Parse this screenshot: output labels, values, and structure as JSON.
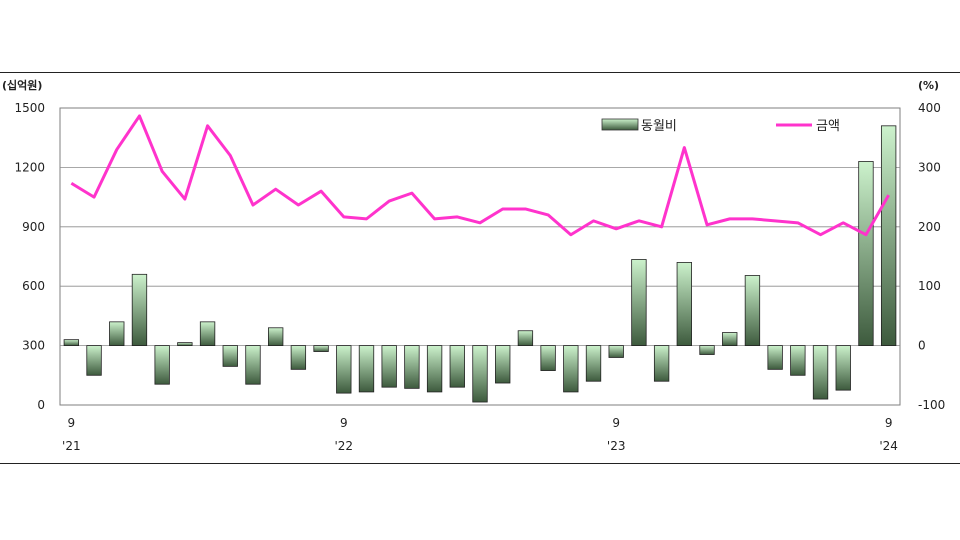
{
  "chart_data": {
    "type": "bar+line",
    "left_unit": "(십억원)",
    "right_unit": "(%)",
    "left_ylim": [
      0,
      1500
    ],
    "left_ticks": [
      "0",
      "300",
      "600",
      "900",
      "1200",
      "1500"
    ],
    "right_ylim": [
      -100,
      400
    ],
    "right_ticks": [
      "-100",
      "0",
      "100",
      "200",
      "300",
      "400"
    ],
    "grid": true,
    "legend_position": "top-right",
    "x_tick_labels": [
      {
        "month": "9",
        "year": "'21",
        "index": 0
      },
      {
        "month": "9",
        "year": "'22",
        "index": 12
      },
      {
        "month": "9",
        "year": "'23",
        "index": 24
      },
      {
        "month": "9",
        "year": "'24",
        "index": 36
      }
    ],
    "series": [
      {
        "name": "동월비",
        "type": "bar",
        "axis": "right",
        "color_top": "#ccf2cc",
        "color_bottom": "#3d5a3d",
        "values": [
          10,
          -50,
          40,
          120,
          -65,
          5,
          40,
          -35,
          -65,
          30,
          -40,
          -10,
          -80,
          -78,
          -70,
          -72,
          -78,
          -70,
          -95,
          -63,
          25,
          -42,
          -78,
          -60,
          -20,
          145,
          -60,
          140,
          -15,
          22,
          118,
          -40,
          -50,
          -90,
          -75,
          310,
          370
        ]
      },
      {
        "name": "금액",
        "type": "line",
        "axis": "left",
        "color": "#ff33cc",
        "values": [
          1120,
          1050,
          1290,
          1460,
          1180,
          1040,
          1410,
          1260,
          1010,
          1090,
          1010,
          1080,
          950,
          940,
          1030,
          1070,
          940,
          950,
          920,
          990,
          990,
          960,
          860,
          930,
          890,
          930,
          900,
          1300,
          910,
          940,
          940,
          930,
          920,
          860,
          920,
          860,
          1060
        ]
      }
    ]
  }
}
